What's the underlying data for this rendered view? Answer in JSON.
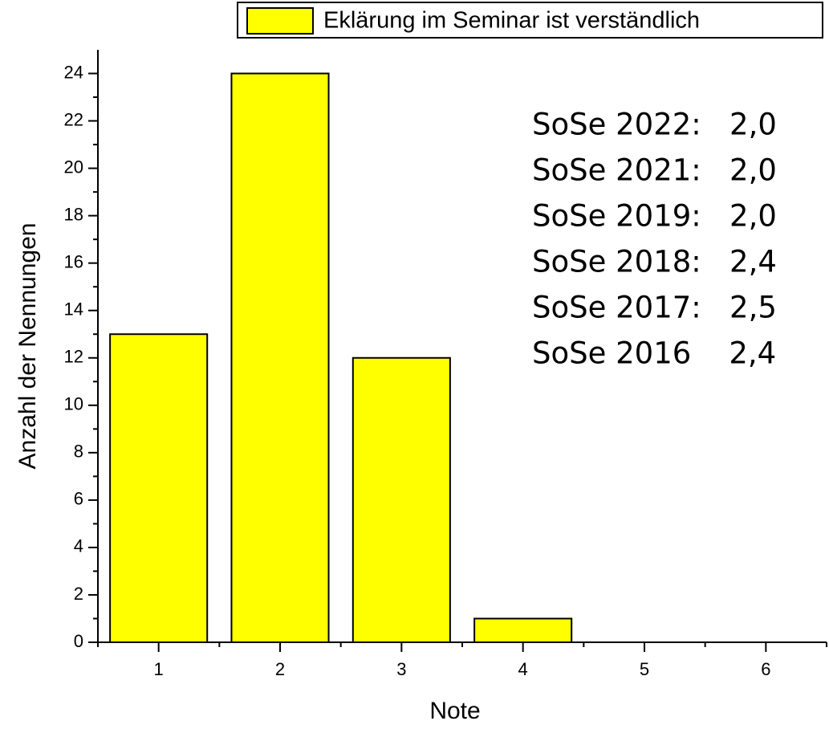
{
  "chart_data": {
    "type": "bar",
    "legend": "Eklärung im Seminar ist verständlich",
    "x": [
      1,
      2,
      3,
      4,
      5,
      6
    ],
    "values": [
      13,
      24,
      12,
      1,
      0,
      0
    ],
    "color": "#ffff00",
    "xlabel": "Note",
    "ylabel": "Anzahl der Nennungen",
    "xlim": [
      0.5,
      6.5
    ],
    "xticks": [
      1,
      2,
      3,
      4,
      5,
      6
    ],
    "ylim": [
      0,
      25
    ],
    "yticks": [
      0,
      2,
      4,
      6,
      8,
      10,
      12,
      14,
      16,
      18,
      20,
      22,
      24
    ],
    "annotations": [
      "SoSe 2022:   2,0",
      "SoSe 2021:   2,0",
      "SoSe 2019:   2,0",
      "SoSe 2018:   2,4",
      "SoSe 2017:   2,5",
      "SoSe 2016    2,4"
    ]
  }
}
